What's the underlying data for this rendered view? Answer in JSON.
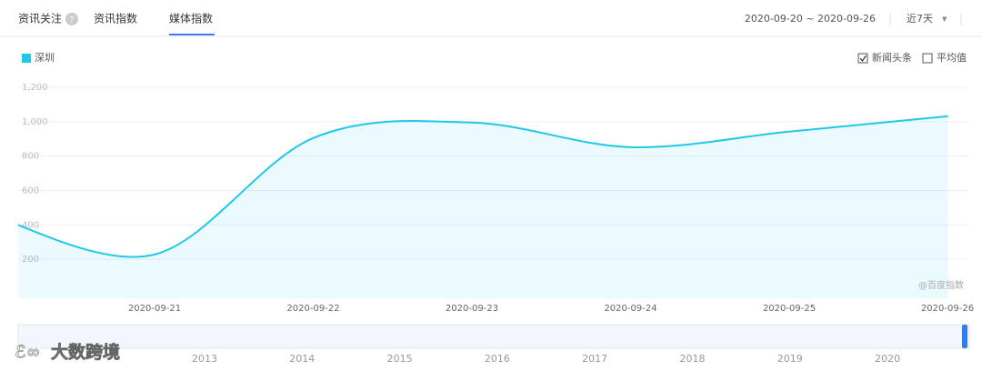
{
  "tabs": [
    "资讯关注",
    "资讯指数",
    "媒体指数"
  ],
  "date_range": "2020-09-20 ~ 2020-09-26",
  "period": "近7天",
  "options": [
    "新闻头条",
    "平均值"
  ],
  "watermark": "@百度指数",
  "logo": "大数跨境",
  "timeline_years": [
    "2013",
    "2014",
    "2015",
    "2016",
    "2017",
    "2018",
    "2019",
    "2020"
  ],
  "chart_data": {
    "type": "area",
    "categories": [
      null,
      "2020-09-21",
      "2020-09-22",
      "2020-09-23",
      "2020-09-24",
      "2020-09-25",
      "2020-09-26"
    ],
    "series": [
      {
        "name": "深圳",
        "color": "#1fc8e8",
        "values": [
          445,
          228,
          905,
          995,
          852,
          942,
          1032
        ]
      }
    ],
    "ylim": [
      0,
      1200
    ],
    "yticks": [
      200,
      400,
      600,
      800,
      {
        "value": 1000,
        "label": "1,000"
      },
      {
        "value": 1200,
        "label": "1,200"
      }
    ],
    "grid": true
  }
}
